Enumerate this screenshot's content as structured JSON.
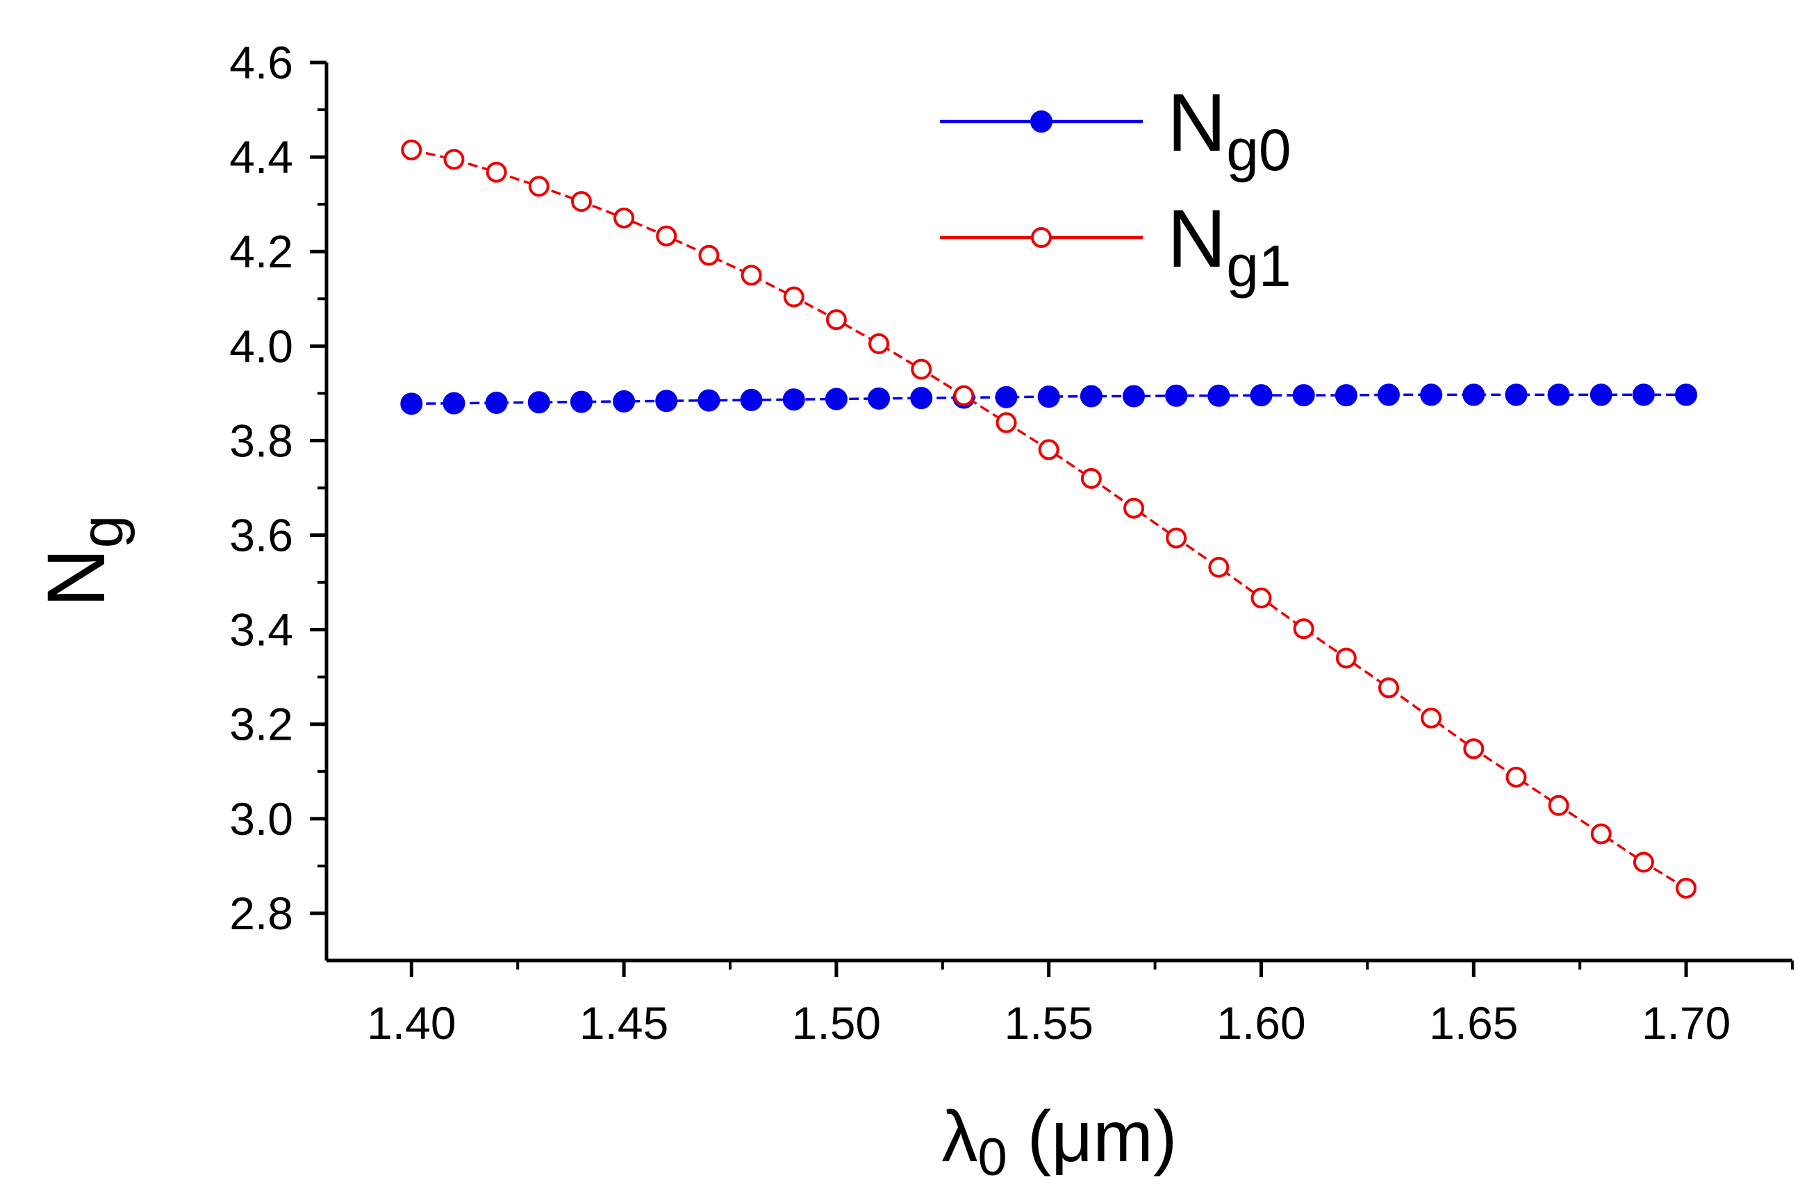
{
  "chart_data": {
    "type": "line",
    "title": "",
    "xlabel": {
      "base": "λ",
      "sub": "0",
      "unit": " (μm)"
    },
    "ylabel": {
      "base": "N",
      "sub": "g"
    },
    "xlim": [
      1.38,
      1.725
    ],
    "ylim": [
      2.7,
      4.6
    ],
    "x_ticks": [
      1.4,
      1.45,
      1.5,
      1.55,
      1.6,
      1.65,
      1.7
    ],
    "x_tick_labels": [
      "1.40",
      "1.45",
      "1.50",
      "1.55",
      "1.60",
      "1.65",
      "1.70"
    ],
    "y_ticks": [
      2.8,
      3.0,
      3.2,
      3.4,
      3.6,
      3.8,
      4.0,
      4.2,
      4.4,
      4.6
    ],
    "y_tick_labels": [
      "2.8",
      "3.0",
      "3.2",
      "3.4",
      "3.6",
      "3.8",
      "4.0",
      "4.2",
      "4.4",
      "4.6"
    ],
    "grid": false,
    "legend_position": "top-center",
    "x": [
      1.4,
      1.41,
      1.42,
      1.43,
      1.44,
      1.45,
      1.46,
      1.47,
      1.48,
      1.49,
      1.5,
      1.51,
      1.52,
      1.53,
      1.54,
      1.55,
      1.56,
      1.57,
      1.58,
      1.59,
      1.6,
      1.61,
      1.62,
      1.63,
      1.64,
      1.65,
      1.66,
      1.67,
      1.68,
      1.69,
      1.7
    ],
    "series": [
      {
        "name": "Ng0",
        "label_base": "N",
        "label_sub": "g0",
        "color": "#0000ee",
        "marker": "filled-circle",
        "values": [
          3.878,
          3.879,
          3.88,
          3.881,
          3.882,
          3.883,
          3.884,
          3.885,
          3.886,
          3.887,
          3.888,
          3.889,
          3.89,
          3.891,
          3.892,
          3.893,
          3.894,
          3.894,
          3.895,
          3.895,
          3.896,
          3.896,
          3.896,
          3.897,
          3.897,
          3.897,
          3.897,
          3.897,
          3.897,
          3.897,
          3.897
        ]
      },
      {
        "name": "Ng1",
        "label_base": "N",
        "label_sub": "g1",
        "color": "#ee0000",
        "marker": "open-circle",
        "values": [
          4.415,
          4.395,
          4.368,
          4.338,
          4.306,
          4.271,
          4.233,
          4.192,
          4.15,
          4.104,
          4.056,
          4.005,
          3.951,
          3.895,
          3.838,
          3.781,
          3.72,
          3.657,
          3.594,
          3.532,
          3.467,
          3.402,
          3.34,
          3.277,
          3.213,
          3.148,
          3.088,
          3.028,
          2.968,
          2.908,
          2.853
        ]
      }
    ]
  }
}
